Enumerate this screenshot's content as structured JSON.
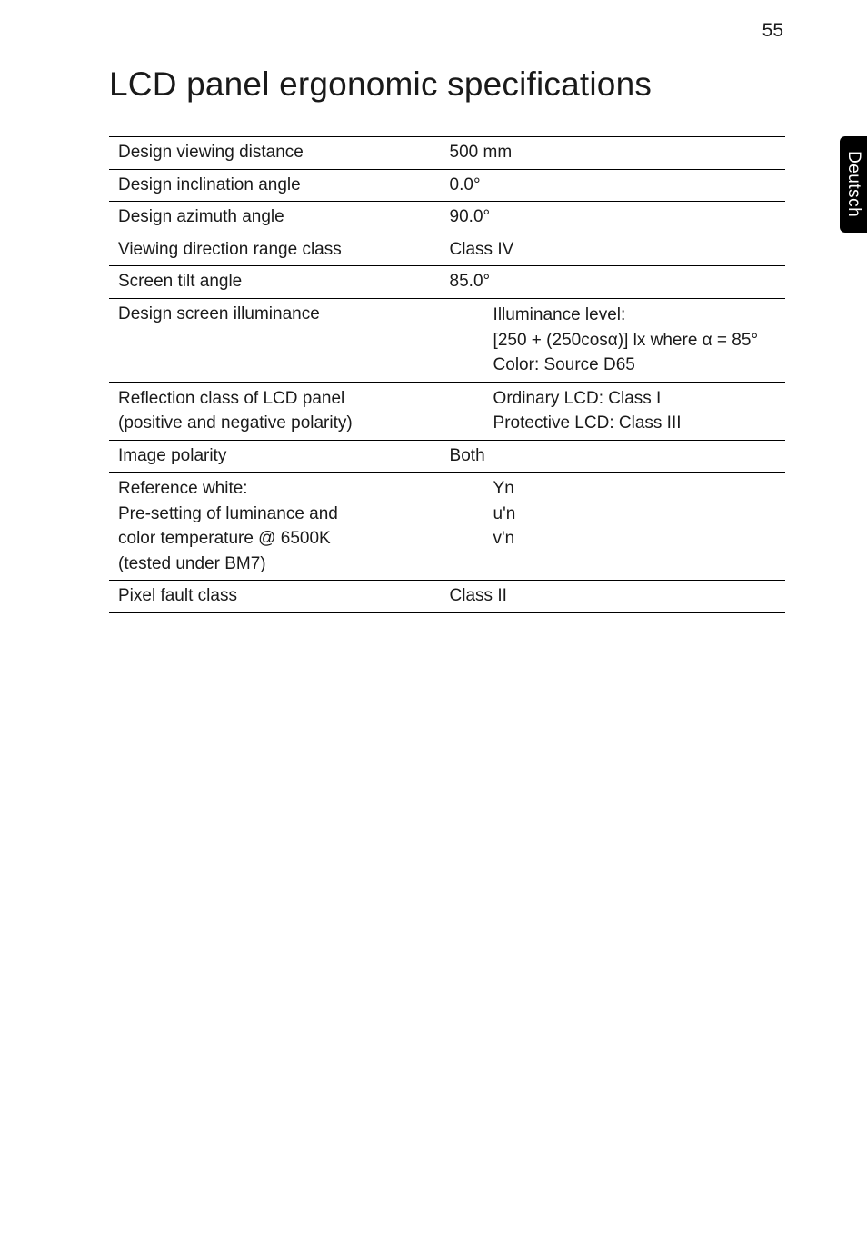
{
  "page_number": "55",
  "side_tab": "Deutsch",
  "title": "LCD panel ergonomic specifications",
  "rows": [
    {
      "label": "Design viewing distance",
      "value": "500 mm"
    },
    {
      "label": "Design inclination angle",
      "value": "0.0°"
    },
    {
      "label": "Design azimuth angle",
      "value": "90.0°"
    },
    {
      "label": "Viewing direction range class",
      "value": "Class IV"
    },
    {
      "label": "Screen tilt angle",
      "value": "85.0°"
    }
  ],
  "illuminance": {
    "label": "Design screen illuminance",
    "lines": [
      "Illuminance level:",
      "[250 + (250cosα)] lx where α = 85°",
      "Color: Source D65"
    ]
  },
  "reflection": {
    "label_line1": "Reflection class of LCD panel",
    "label_line2": "(positive and negative polarity)",
    "value_line1": "Ordinary LCD: Class I",
    "value_line2": "Protective LCD: Class III"
  },
  "polarity": {
    "label": "Image polarity",
    "value": "Both"
  },
  "reference_white": {
    "labels": [
      "Reference white:",
      "Pre-setting of luminance and",
      "color temperature @ 6500K",
      "(tested under BM7)"
    ],
    "values": [
      "Yn",
      "u'n",
      "v'n"
    ]
  },
  "pixel_fault": {
    "label": "Pixel fault class",
    "value": "Class II"
  }
}
